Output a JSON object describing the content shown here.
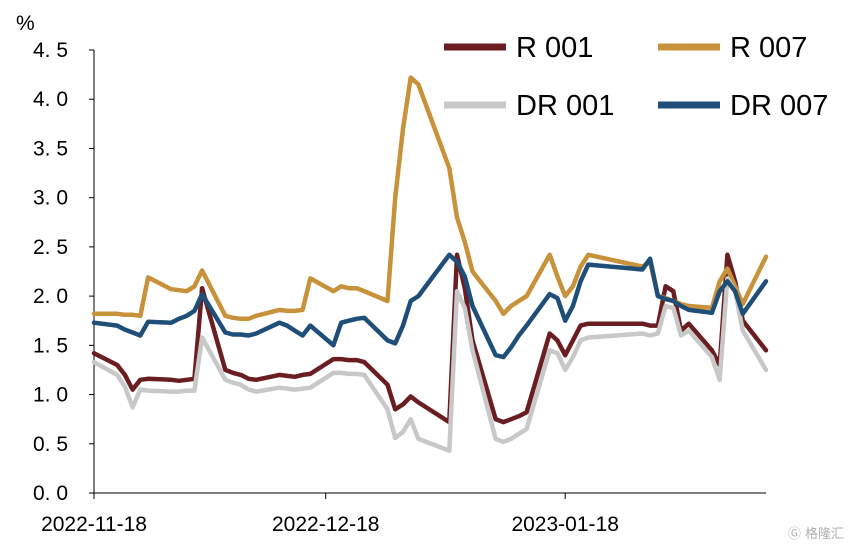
{
  "chart_data": {
    "type": "line",
    "unit": "%",
    "ylim": [
      0,
      4.5
    ],
    "yticks": [
      "0. 0",
      "0. 5",
      "1. 0",
      "1. 5",
      "2. 0",
      "2. 5",
      "3. 0",
      "3. 5",
      "4. 0",
      "4. 5"
    ],
    "x_start": "2022-11-18",
    "x_end": "2023-02-13",
    "xticks": [
      {
        "date": "2022-11-18",
        "label": "2022-11-18"
      },
      {
        "date": "2022-12-18",
        "label": "2022-12-18"
      },
      {
        "date": "2023-01-18",
        "label": "2023-01-18"
      }
    ],
    "legend": "top-right",
    "grid": false,
    "series": [
      {
        "name": "R 001",
        "color": "#6b1e22",
        "points": [
          [
            "2022-11-18",
            1.42
          ],
          [
            "2022-11-21",
            1.3
          ],
          [
            "2022-11-22",
            1.2
          ],
          [
            "2022-11-23",
            1.05
          ],
          [
            "2022-11-24",
            1.15
          ],
          [
            "2022-11-25",
            1.16
          ],
          [
            "2022-11-28",
            1.15
          ],
          [
            "2022-11-29",
            1.14
          ],
          [
            "2022-11-30",
            1.15
          ],
          [
            "2022-12-01",
            1.16
          ],
          [
            "2022-12-02",
            2.08
          ],
          [
            "2022-12-05",
            1.25
          ],
          [
            "2022-12-06",
            1.22
          ],
          [
            "2022-12-07",
            1.2
          ],
          [
            "2022-12-08",
            1.16
          ],
          [
            "2022-12-09",
            1.15
          ],
          [
            "2022-12-12",
            1.2
          ],
          [
            "2022-12-13",
            1.19
          ],
          [
            "2022-12-14",
            1.18
          ],
          [
            "2022-12-15",
            1.2
          ],
          [
            "2022-12-16",
            1.21
          ],
          [
            "2022-12-19",
            1.36
          ],
          [
            "2022-12-20",
            1.36
          ],
          [
            "2022-12-21",
            1.35
          ],
          [
            "2022-12-22",
            1.35
          ],
          [
            "2022-12-23",
            1.33
          ],
          [
            "2022-12-26",
            1.1
          ],
          [
            "2022-12-27",
            0.85
          ],
          [
            "2022-12-28",
            0.9
          ],
          [
            "2022-12-29",
            0.98
          ],
          [
            "2022-12-30",
            0.92
          ],
          [
            "2023-01-03",
            0.72
          ],
          [
            "2023-01-04",
            2.42
          ],
          [
            "2023-01-05",
            2.08
          ],
          [
            "2023-01-06",
            1.55
          ],
          [
            "2023-01-09",
            0.75
          ],
          [
            "2023-01-10",
            0.72
          ],
          [
            "2023-01-11",
            0.75
          ],
          [
            "2023-01-12",
            0.78
          ],
          [
            "2023-01-13",
            0.82
          ],
          [
            "2023-01-16",
            1.62
          ],
          [
            "2023-01-17",
            1.55
          ],
          [
            "2023-01-18",
            1.4
          ],
          [
            "2023-01-19",
            1.55
          ],
          [
            "2023-01-20",
            1.7
          ],
          [
            "2023-01-21",
            1.72
          ],
          [
            "2023-01-28",
            1.72
          ],
          [
            "2023-01-29",
            1.7
          ],
          [
            "2023-01-30",
            1.7
          ],
          [
            "2023-01-31",
            2.1
          ],
          [
            "2023-02-01",
            2.05
          ],
          [
            "2023-02-02",
            1.65
          ],
          [
            "2023-02-03",
            1.72
          ],
          [
            "2023-02-06",
            1.45
          ],
          [
            "2023-02-07",
            1.3
          ],
          [
            "2023-02-08",
            2.42
          ],
          [
            "2023-02-09",
            2.15
          ],
          [
            "2023-02-10",
            1.75
          ],
          [
            "2023-02-13",
            1.45
          ]
        ]
      },
      {
        "name": "R 007",
        "color": "#c8923a",
        "points": [
          [
            "2022-11-18",
            1.82
          ],
          [
            "2022-11-21",
            1.82
          ],
          [
            "2022-11-22",
            1.81
          ],
          [
            "2022-11-23",
            1.81
          ],
          [
            "2022-11-24",
            1.8
          ],
          [
            "2022-11-25",
            2.19
          ],
          [
            "2022-11-28",
            2.07
          ],
          [
            "2022-11-29",
            2.06
          ],
          [
            "2022-11-30",
            2.05
          ],
          [
            "2022-12-01",
            2.1
          ],
          [
            "2022-12-02",
            2.26
          ],
          [
            "2022-12-05",
            1.8
          ],
          [
            "2022-12-06",
            1.78
          ],
          [
            "2022-12-07",
            1.77
          ],
          [
            "2022-12-08",
            1.77
          ],
          [
            "2022-12-09",
            1.8
          ],
          [
            "2022-12-12",
            1.86
          ],
          [
            "2022-12-13",
            1.85
          ],
          [
            "2022-12-14",
            1.85
          ],
          [
            "2022-12-15",
            1.86
          ],
          [
            "2022-12-16",
            2.18
          ],
          [
            "2022-12-19",
            2.05
          ],
          [
            "2022-12-20",
            2.1
          ],
          [
            "2022-12-21",
            2.08
          ],
          [
            "2022-12-22",
            2.08
          ],
          [
            "2022-12-23",
            2.05
          ],
          [
            "2022-12-26",
            1.95
          ],
          [
            "2022-12-27",
            3.0
          ],
          [
            "2022-12-28",
            3.7
          ],
          [
            "2022-12-29",
            4.22
          ],
          [
            "2022-12-30",
            4.15
          ],
          [
            "2023-01-03",
            3.3
          ],
          [
            "2023-01-04",
            2.8
          ],
          [
            "2023-01-05",
            2.55
          ],
          [
            "2023-01-06",
            2.25
          ],
          [
            "2023-01-09",
            1.95
          ],
          [
            "2023-01-10",
            1.82
          ],
          [
            "2023-01-11",
            1.9
          ],
          [
            "2023-01-12",
            1.95
          ],
          [
            "2023-01-13",
            2.0
          ],
          [
            "2023-01-16",
            2.42
          ],
          [
            "2023-01-17",
            2.2
          ],
          [
            "2023-01-18",
            2.0
          ],
          [
            "2023-01-19",
            2.1
          ],
          [
            "2023-01-20",
            2.3
          ],
          [
            "2023-01-21",
            2.42
          ],
          [
            "2023-01-28",
            2.3
          ],
          [
            "2023-01-29",
            2.35
          ],
          [
            "2023-01-30",
            2.0
          ],
          [
            "2023-01-31",
            1.98
          ],
          [
            "2023-02-01",
            1.95
          ],
          [
            "2023-02-02",
            1.92
          ],
          [
            "2023-02-03",
            1.9
          ],
          [
            "2023-02-06",
            1.88
          ],
          [
            "2023-02-07",
            2.15
          ],
          [
            "2023-02-08",
            2.28
          ],
          [
            "2023-02-09",
            2.1
          ],
          [
            "2023-02-10",
            1.92
          ],
          [
            "2023-02-13",
            2.4
          ]
        ]
      },
      {
        "name": "DR 001",
        "color": "#c8c8c8",
        "points": [
          [
            "2022-11-18",
            1.33
          ],
          [
            "2022-11-21",
            1.2
          ],
          [
            "2022-11-22",
            1.08
          ],
          [
            "2022-11-23",
            0.87
          ],
          [
            "2022-11-24",
            1.05
          ],
          [
            "2022-11-25",
            1.04
          ],
          [
            "2022-11-28",
            1.03
          ],
          [
            "2022-11-29",
            1.03
          ],
          [
            "2022-11-30",
            1.04
          ],
          [
            "2022-12-01",
            1.04
          ],
          [
            "2022-12-02",
            1.58
          ],
          [
            "2022-12-05",
            1.15
          ],
          [
            "2022-12-06",
            1.12
          ],
          [
            "2022-12-07",
            1.1
          ],
          [
            "2022-12-08",
            1.05
          ],
          [
            "2022-12-09",
            1.03
          ],
          [
            "2022-12-12",
            1.07
          ],
          [
            "2022-12-13",
            1.06
          ],
          [
            "2022-12-14",
            1.05
          ],
          [
            "2022-12-15",
            1.06
          ],
          [
            "2022-12-16",
            1.07
          ],
          [
            "2022-12-19",
            1.22
          ],
          [
            "2022-12-20",
            1.22
          ],
          [
            "2022-12-21",
            1.21
          ],
          [
            "2022-12-22",
            1.21
          ],
          [
            "2022-12-23",
            1.2
          ],
          [
            "2022-12-26",
            0.85
          ],
          [
            "2022-12-27",
            0.56
          ],
          [
            "2022-12-28",
            0.62
          ],
          [
            "2022-12-29",
            0.75
          ],
          [
            "2022-12-30",
            0.55
          ],
          [
            "2023-01-03",
            0.43
          ],
          [
            "2023-01-04",
            2.05
          ],
          [
            "2023-01-05",
            1.88
          ],
          [
            "2023-01-06",
            1.45
          ],
          [
            "2023-01-09",
            0.55
          ],
          [
            "2023-01-10",
            0.52
          ],
          [
            "2023-01-11",
            0.55
          ],
          [
            "2023-01-12",
            0.6
          ],
          [
            "2023-01-13",
            0.65
          ],
          [
            "2023-01-16",
            1.45
          ],
          [
            "2023-01-17",
            1.42
          ],
          [
            "2023-01-18",
            1.25
          ],
          [
            "2023-01-19",
            1.38
          ],
          [
            "2023-01-20",
            1.55
          ],
          [
            "2023-01-21",
            1.58
          ],
          [
            "2023-01-28",
            1.62
          ],
          [
            "2023-01-29",
            1.6
          ],
          [
            "2023-01-30",
            1.62
          ],
          [
            "2023-01-31",
            1.9
          ],
          [
            "2023-02-01",
            1.88
          ],
          [
            "2023-02-02",
            1.6
          ],
          [
            "2023-02-03",
            1.65
          ],
          [
            "2023-02-06",
            1.38
          ],
          [
            "2023-02-07",
            1.15
          ],
          [
            "2023-02-08",
            2.18
          ],
          [
            "2023-02-09",
            2.05
          ],
          [
            "2023-02-10",
            1.65
          ],
          [
            "2023-02-13",
            1.25
          ]
        ]
      },
      {
        "name": "DR 007",
        "color": "#1f4e79",
        "points": [
          [
            "2022-11-18",
            1.73
          ],
          [
            "2022-11-21",
            1.7
          ],
          [
            "2022-11-22",
            1.66
          ],
          [
            "2022-11-23",
            1.63
          ],
          [
            "2022-11-24",
            1.6
          ],
          [
            "2022-11-25",
            1.74
          ],
          [
            "2022-11-28",
            1.73
          ],
          [
            "2022-11-29",
            1.77
          ],
          [
            "2022-11-30",
            1.8
          ],
          [
            "2022-12-01",
            1.85
          ],
          [
            "2022-12-02",
            2.02
          ],
          [
            "2022-12-05",
            1.63
          ],
          [
            "2022-12-06",
            1.61
          ],
          [
            "2022-12-07",
            1.61
          ],
          [
            "2022-12-08",
            1.6
          ],
          [
            "2022-12-09",
            1.62
          ],
          [
            "2022-12-12",
            1.73
          ],
          [
            "2022-12-13",
            1.7
          ],
          [
            "2022-12-14",
            1.65
          ],
          [
            "2022-12-15",
            1.6
          ],
          [
            "2022-12-16",
            1.7
          ],
          [
            "2022-12-19",
            1.5
          ],
          [
            "2022-12-20",
            1.73
          ],
          [
            "2022-12-21",
            1.75
          ],
          [
            "2022-12-22",
            1.77
          ],
          [
            "2022-12-23",
            1.78
          ],
          [
            "2022-12-26",
            1.55
          ],
          [
            "2022-12-27",
            1.52
          ],
          [
            "2022-12-28",
            1.7
          ],
          [
            "2022-12-29",
            1.95
          ],
          [
            "2022-12-30",
            2.0
          ],
          [
            "2023-01-03",
            2.42
          ],
          [
            "2023-01-04",
            2.35
          ],
          [
            "2023-01-05",
            2.2
          ],
          [
            "2023-01-06",
            1.9
          ],
          [
            "2023-01-09",
            1.4
          ],
          [
            "2023-01-10",
            1.38
          ],
          [
            "2023-01-11",
            1.48
          ],
          [
            "2023-01-12",
            1.6
          ],
          [
            "2023-01-13",
            1.7
          ],
          [
            "2023-01-16",
            2.02
          ],
          [
            "2023-01-17",
            1.98
          ],
          [
            "2023-01-18",
            1.75
          ],
          [
            "2023-01-19",
            1.9
          ],
          [
            "2023-01-20",
            2.15
          ],
          [
            "2023-01-21",
            2.32
          ],
          [
            "2023-01-28",
            2.27
          ],
          [
            "2023-01-29",
            2.38
          ],
          [
            "2023-01-30",
            2.0
          ],
          [
            "2023-01-31",
            1.97
          ],
          [
            "2023-02-01",
            1.95
          ],
          [
            "2023-02-02",
            1.9
          ],
          [
            "2023-02-03",
            1.86
          ],
          [
            "2023-02-06",
            1.83
          ],
          [
            "2023-02-07",
            2.05
          ],
          [
            "2023-02-08",
            2.15
          ],
          [
            "2023-02-09",
            2.05
          ],
          [
            "2023-02-10",
            1.82
          ],
          [
            "2023-02-13",
            2.15
          ]
        ]
      }
    ]
  },
  "watermark": "格隆汇"
}
